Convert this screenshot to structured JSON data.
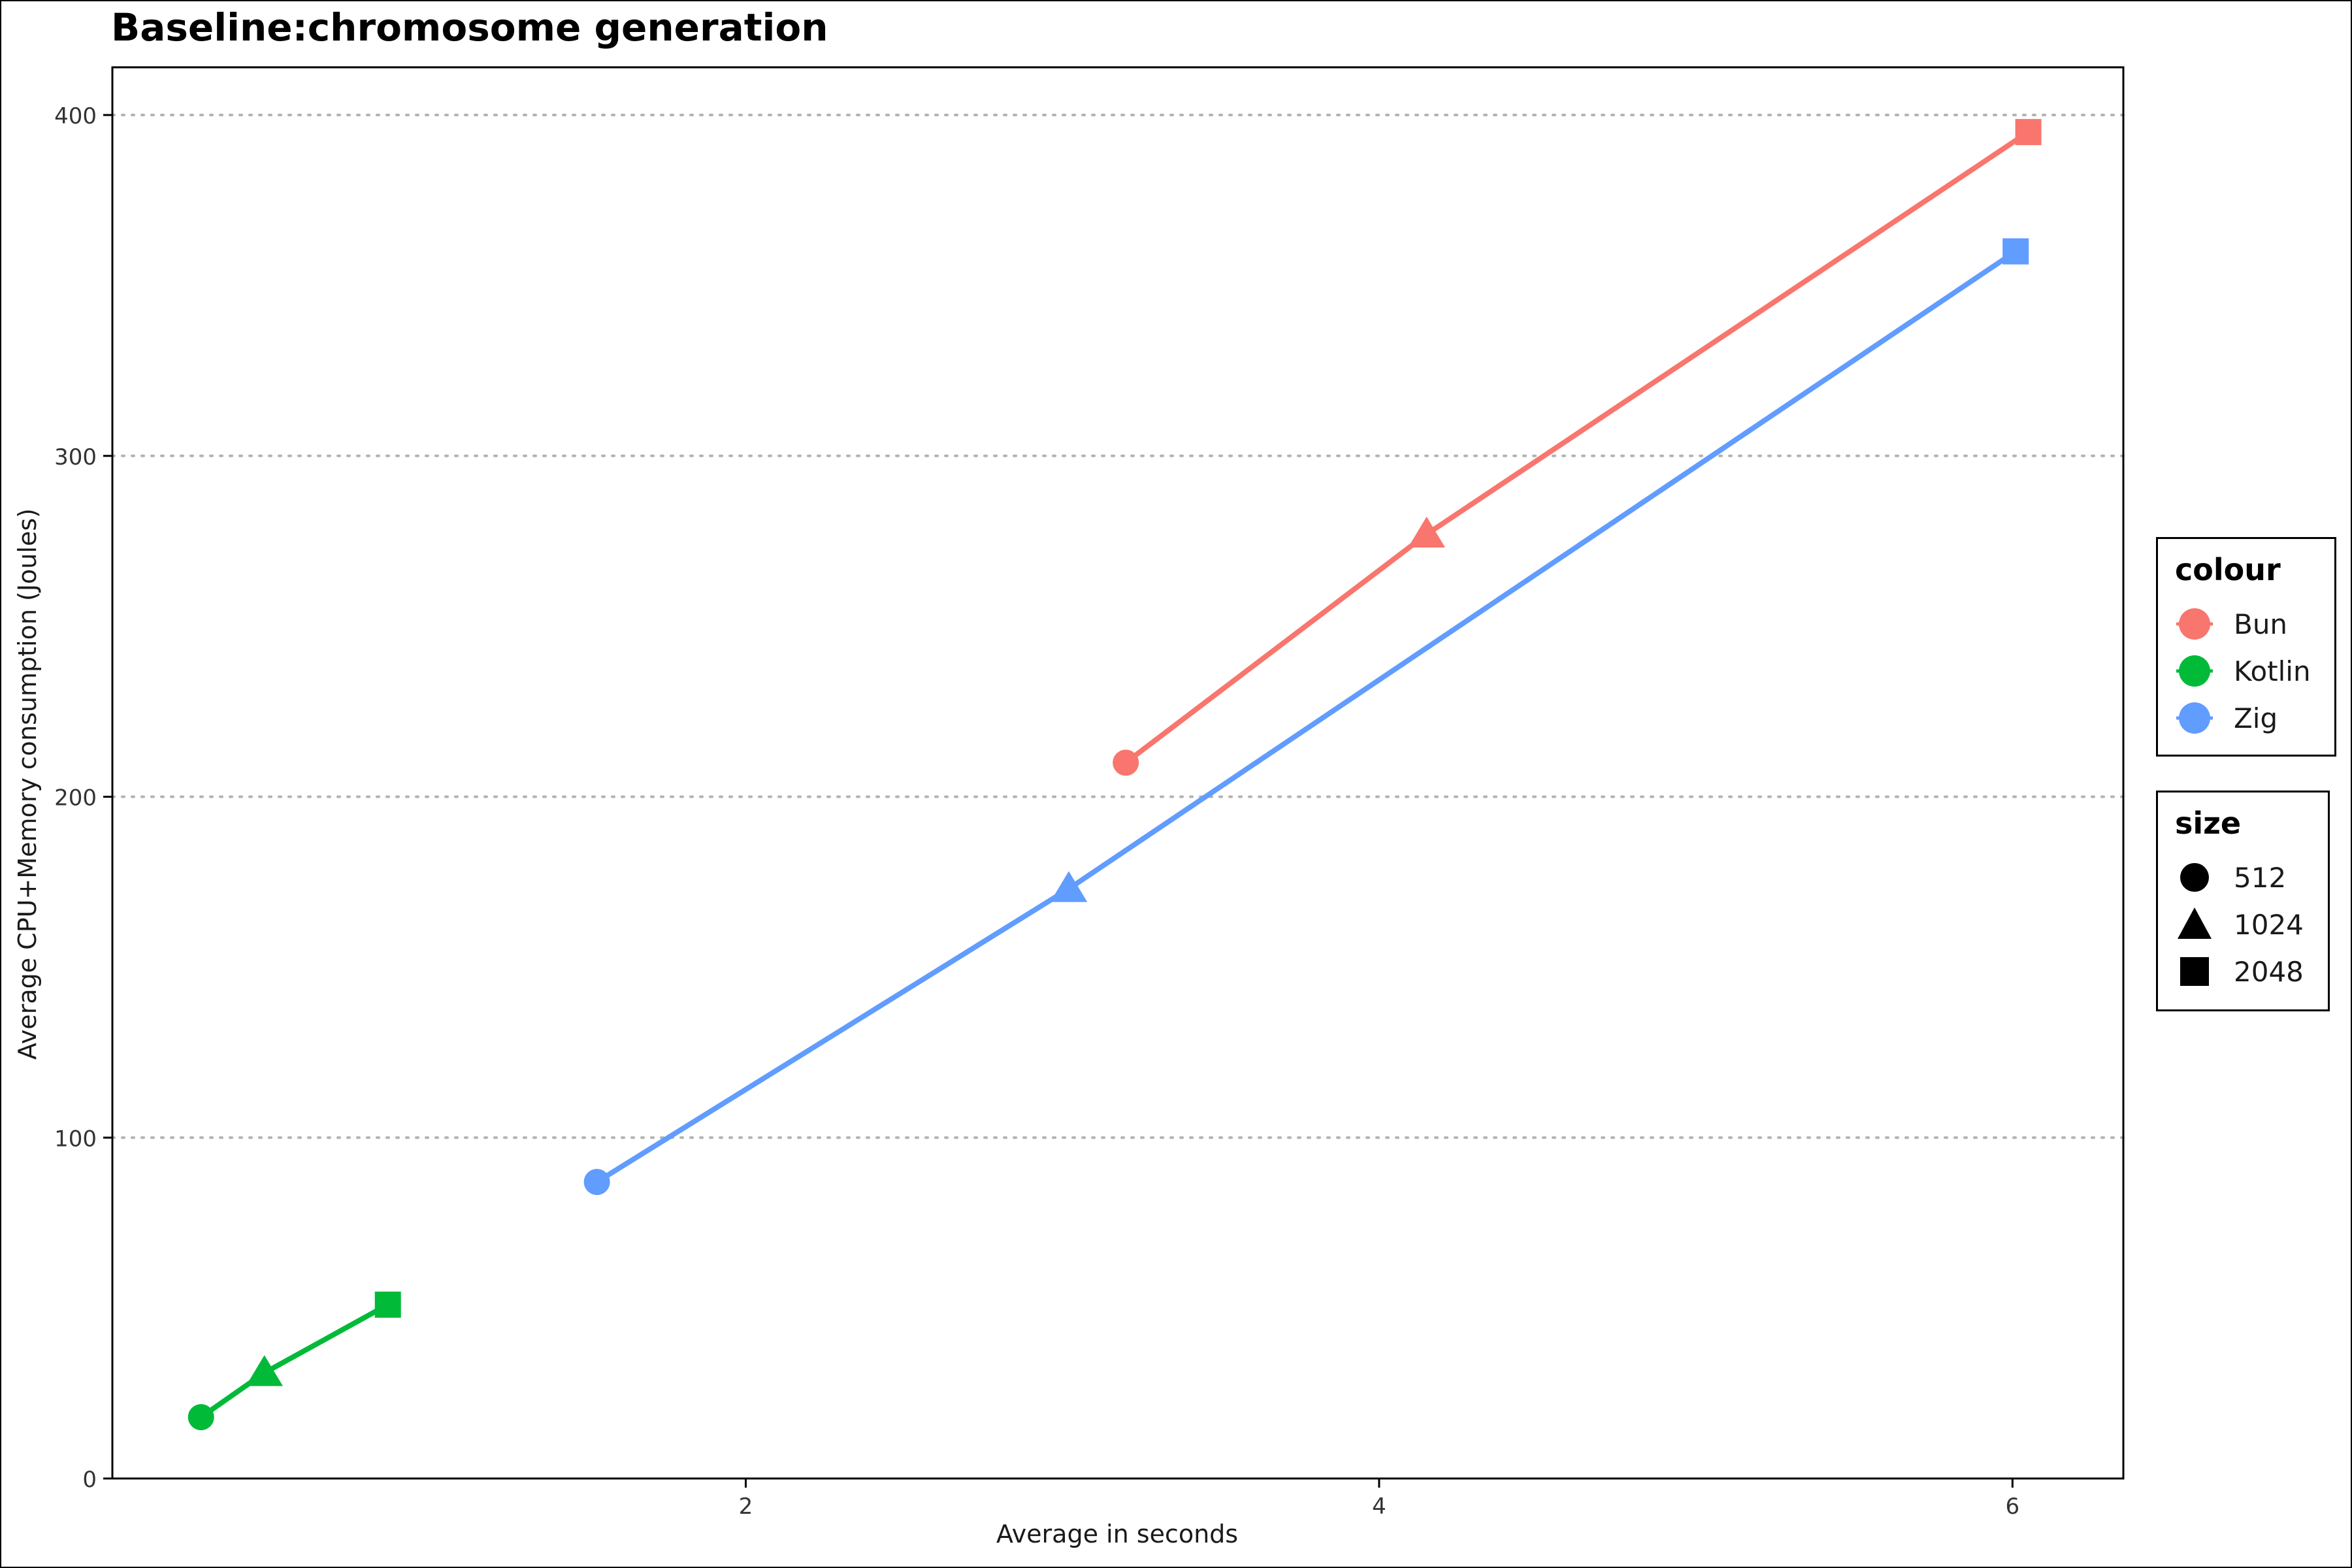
{
  "chart_data": {
    "type": "line",
    "title": "Baseline:chromosome generation",
    "xlabel": "Average in seconds",
    "ylabel": "Average CPU+Memory consumption (Joules)",
    "xlim": [
      0.0,
      6.35
    ],
    "ylim": [
      0,
      414
    ],
    "x_ticks": [
      2,
      4,
      6
    ],
    "y_ticks": [
      0,
      100,
      200,
      300,
      400
    ],
    "grid": "horizontal dotted",
    "legend_placement": "right",
    "series": [
      {
        "name": "Bun",
        "color": "#F8766D",
        "points": [
          {
            "x": 3.2,
            "y": 210,
            "size": "512"
          },
          {
            "x": 4.15,
            "y": 277,
            "size": "1024"
          },
          {
            "x": 6.05,
            "y": 395,
            "size": "2048"
          }
        ]
      },
      {
        "name": "Kotlin",
        "color": "#00BA38",
        "points": [
          {
            "x": 0.28,
            "y": 18,
            "size": "512"
          },
          {
            "x": 0.48,
            "y": 31,
            "size": "1024"
          },
          {
            "x": 0.87,
            "y": 51,
            "size": "2048"
          }
        ]
      },
      {
        "name": "Zig",
        "color": "#619CFF",
        "points": [
          {
            "x": 1.53,
            "y": 87,
            "size": "512"
          },
          {
            "x": 3.02,
            "y": 173,
            "size": "1024"
          },
          {
            "x": 6.01,
            "y": 360,
            "size": "2048"
          }
        ]
      }
    ],
    "legends": {
      "colour": {
        "title": "colour",
        "items": [
          {
            "label": "Bun",
            "color": "#F8766D"
          },
          {
            "label": "Kotlin",
            "color": "#00BA38"
          },
          {
            "label": "Zig",
            "color": "#619CFF"
          }
        ]
      },
      "size": {
        "title": "size",
        "items": [
          {
            "label": "512",
            "shape": "circle"
          },
          {
            "label": "1024",
            "shape": "triangle"
          },
          {
            "label": "2048",
            "shape": "square"
          }
        ]
      }
    }
  }
}
